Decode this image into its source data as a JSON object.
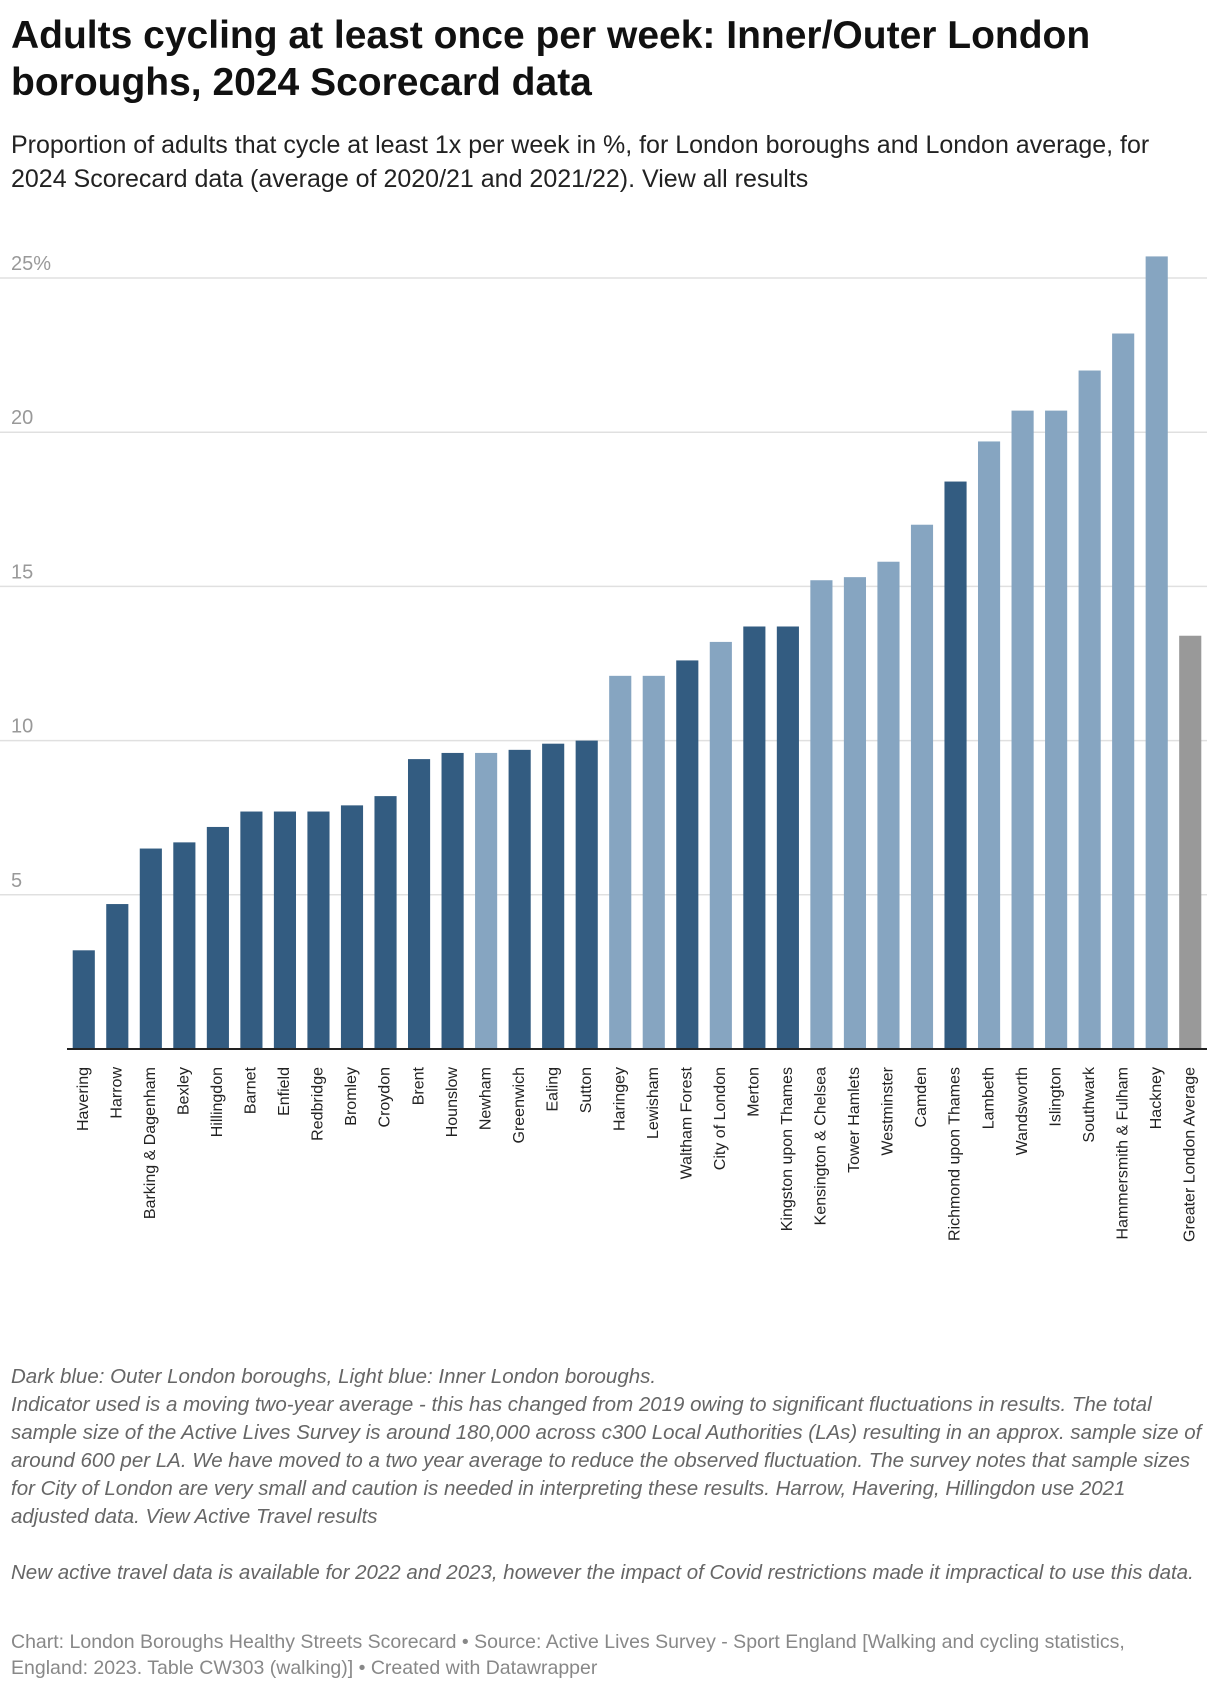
{
  "chart_data": {
    "type": "bar",
    "title": "Adults cycling at least once per week: Inner/Outer London boroughs, 2024 Scorecard data",
    "subtitle": "Proportion of adults that cycle at least 1x per week in %, for London boroughs and London average, for 2024 Scorecard data (average of 2020/21 and 2021/22). View all results",
    "categories": [
      "Havering",
      "Harrow",
      "Barking & Dagenham",
      "Bexley",
      "Hillingdon",
      "Barnet",
      "Enfield",
      "Redbridge",
      "Bromley",
      "Croydon",
      "Brent",
      "Hounslow",
      "Newham",
      "Greenwich",
      "Ealing",
      "Sutton",
      "Haringey",
      "Lewisham",
      "Waltham Forest",
      "City of London",
      "Merton",
      "Kingston upon Thames",
      "Kensington & Chelsea",
      "Tower Hamlets",
      "Westminster",
      "Camden",
      "Richmond upon Thames",
      "Lambeth",
      "Wandsworth",
      "Islington",
      "Southwark",
      "Hammersmith & Fulham",
      "Hackney",
      "Greater London Average"
    ],
    "values": [
      3.2,
      4.7,
      6.5,
      6.7,
      7.2,
      7.7,
      7.7,
      7.7,
      7.9,
      8.2,
      9.4,
      9.6,
      9.6,
      9.7,
      9.9,
      10.0,
      12.1,
      12.1,
      12.6,
      13.2,
      13.7,
      13.7,
      15.2,
      15.3,
      15.8,
      17.0,
      18.4,
      19.7,
      20.7,
      20.7,
      22.0,
      23.2,
      25.7,
      13.4
    ],
    "colors": [
      "#335c81",
      "#335c81",
      "#335c81",
      "#335c81",
      "#335c81",
      "#335c81",
      "#335c81",
      "#335c81",
      "#335c81",
      "#335c81",
      "#335c81",
      "#335c81",
      "#86a5c1",
      "#335c81",
      "#335c81",
      "#335c81",
      "#86a5c1",
      "#86a5c1",
      "#335c81",
      "#86a5c1",
      "#335c81",
      "#335c81",
      "#86a5c1",
      "#86a5c1",
      "#86a5c1",
      "#86a5c1",
      "#335c81",
      "#86a5c1",
      "#86a5c1",
      "#86a5c1",
      "#86a5c1",
      "#86a5c1",
      "#86a5c1",
      "#999999"
    ],
    "ylim": [
      0,
      25
    ],
    "yticks": [
      5,
      10,
      15,
      20,
      {
        "value": 25,
        "label": "25%"
      }
    ],
    "grid": true,
    "notes": [
      "Dark blue: Outer London boroughs, Light blue: Inner London boroughs.",
      "Indicator used is a moving two-year average - this has changed from 2019 owing to significant fluctuations in results. The total sample size of the Active Lives Survey is around 180,000 across c300 Local Authorities (LAs) resulting in an approx. sample size of around 600 per LA. We have moved to a two year average to reduce the observed fluctuation. The survey notes that sample sizes for City of London are very small and caution is needed in interpreting these results. Harrow, Havering, Hillingdon use 2021 adjusted data. View Active Travel results",
      "New active travel data is available for 2022 and 2023, however the impact of Covid restrictions made it impractical to use this data."
    ],
    "source": "Chart: London Boroughs Healthy Streets Scorecard • Source: Active Lives Survey - Sport England [Walking and cycling statistics, England: 2023. Table CW303 (walking)] • Created with Datawrapper"
  }
}
